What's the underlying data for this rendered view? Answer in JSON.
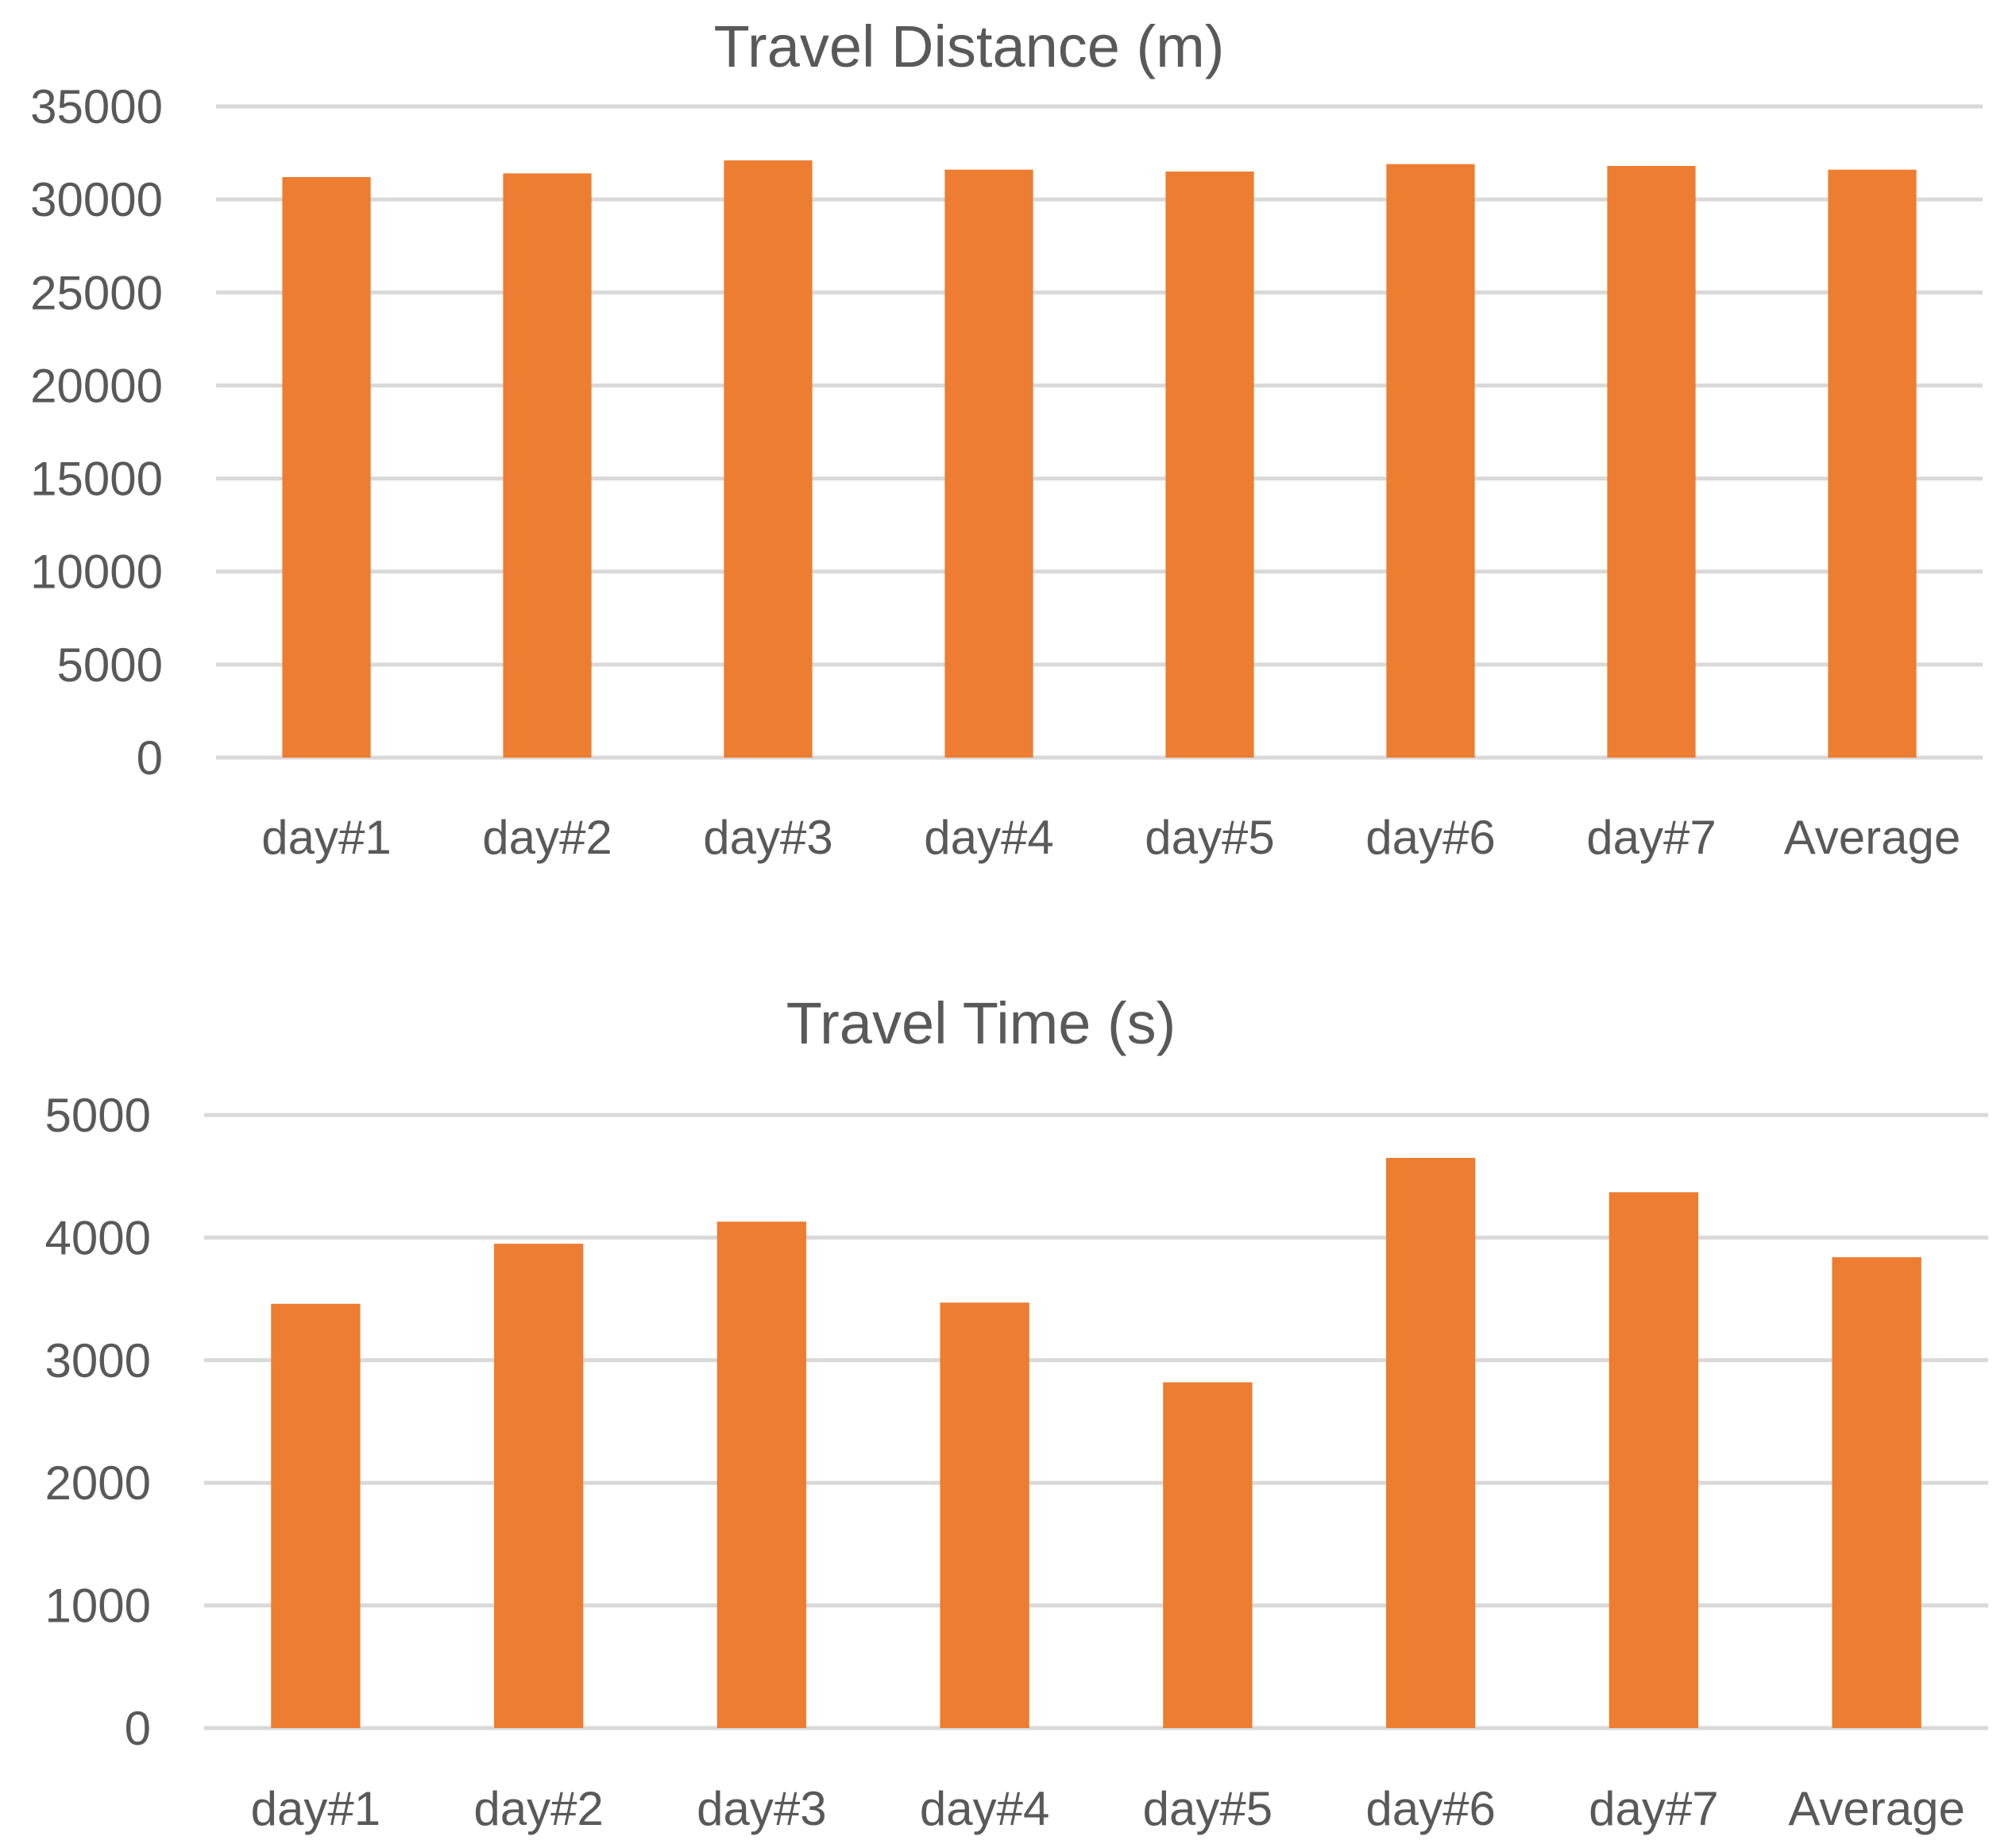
{
  "chart_data": [
    {
      "type": "bar",
      "title": "Travel Distance (m)",
      "xlabel": "",
      "ylabel": "",
      "categories": [
        "day#1",
        "day#2",
        "day#3",
        "day#4",
        "day#5",
        "day#6",
        "day#7",
        "Average"
      ],
      "values": [
        31200,
        31400,
        32100,
        31600,
        31500,
        31900,
        31800,
        31600
      ],
      "ylim": [
        0,
        35000
      ],
      "yticks": [
        "0",
        "5000",
        "10000",
        "15000",
        "20000",
        "25000",
        "30000",
        "35000"
      ],
      "grid": true,
      "legend": "none",
      "color": "#ed7d31"
    },
    {
      "type": "bar",
      "title": "Travel Time (s)",
      "xlabel": "",
      "ylabel": "",
      "categories": [
        "day#1",
        "day#2",
        "day#3",
        "day#4",
        "day#5",
        "day#6",
        "day#7",
        "Average"
      ],
      "values": [
        3460,
        3950,
        4130,
        3470,
        2820,
        4650,
        4370,
        3840
      ],
      "ylim": [
        0,
        5000
      ],
      "yticks": [
        "0",
        "1000",
        "2000",
        "3000",
        "4000",
        "5000"
      ],
      "grid": true,
      "legend": "none",
      "color": "#ed7d31"
    }
  ]
}
